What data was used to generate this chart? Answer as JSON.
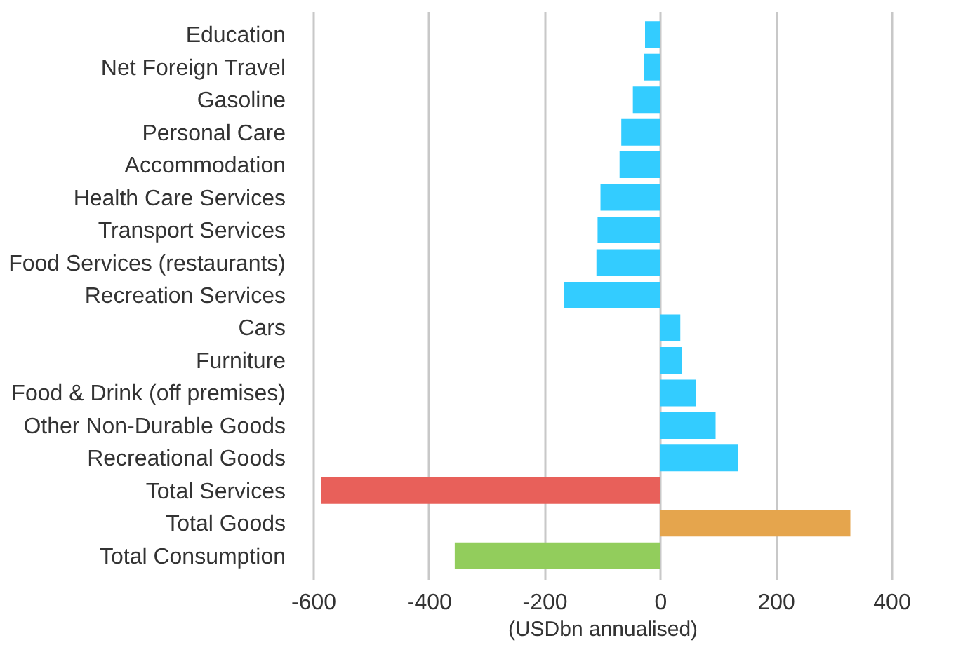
{
  "chart_data": {
    "type": "bar",
    "orientation": "horizontal",
    "xlabel": "(USDbn annualised)",
    "categories": [
      "Education",
      "Net Foreign Travel",
      "Gasoline",
      "Personal Care",
      "Accommodation",
      "Health Care Services",
      "Transport Services",
      "Food Services (restaurants)",
      "Recreation Services",
      "Cars",
      "Furniture",
      "Food & Drink (off premises)",
      "Other Non-Durable Goods",
      "Recreational Goods",
      "Total Services",
      "Total Goods",
      "Total Consumption"
    ],
    "values": [
      -26,
      -28,
      -47,
      -67,
      -70,
      -103,
      -108,
      -110,
      -166,
      35,
      38,
      62,
      96,
      135,
      -586,
      329,
      -355
    ],
    "colors": [
      "#33ccff",
      "#33ccff",
      "#33ccff",
      "#33ccff",
      "#33ccff",
      "#33ccff",
      "#33ccff",
      "#33ccff",
      "#33ccff",
      "#33ccff",
      "#33ccff",
      "#33ccff",
      "#33ccff",
      "#33ccff",
      "#e8605a",
      "#e5a54d",
      "#92cd5c"
    ],
    "xlim": [
      -600,
      400
    ],
    "xticks": [
      -600,
      -400,
      -200,
      0,
      200,
      400
    ],
    "grid": "x"
  }
}
